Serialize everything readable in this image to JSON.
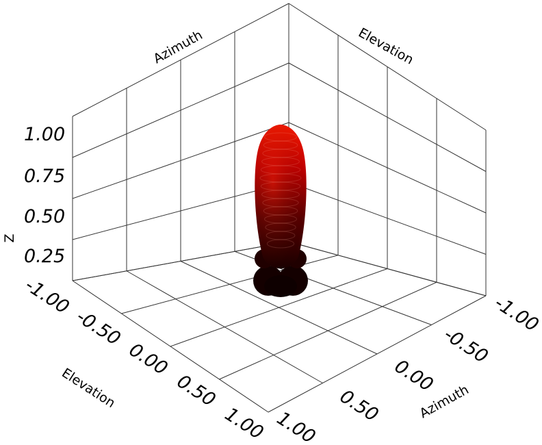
{
  "chart_data": {
    "type": "3d-surface",
    "title": "",
    "axes": {
      "z": {
        "label": "Z",
        "ticks": [
          "0.25",
          "0.50",
          "0.75",
          "1.00"
        ],
        "range": [
          0,
          1
        ]
      },
      "elevation": {
        "label": "Elevation",
        "ticks": [
          "-1.00",
          "-0.50",
          "0.00",
          "0.50",
          "1.00"
        ],
        "range": [
          -1,
          1
        ]
      },
      "azimuth": {
        "label": "Azimuth",
        "ticks": [
          "-1.00",
          "-0.50",
          "0.00",
          "0.50",
          "1.00"
        ],
        "range": [
          -1,
          1
        ]
      }
    },
    "back_wall_labels": {
      "left": "Azimuth",
      "right": "Elevation"
    },
    "grid": true,
    "colormap": [
      "#1a0000",
      "#8b0000",
      "#ff0000"
    ],
    "surface": {
      "description": "radiation pattern lobe",
      "main_lobe_peak": 1.0,
      "side_lobe_level": 0.25
    }
  }
}
